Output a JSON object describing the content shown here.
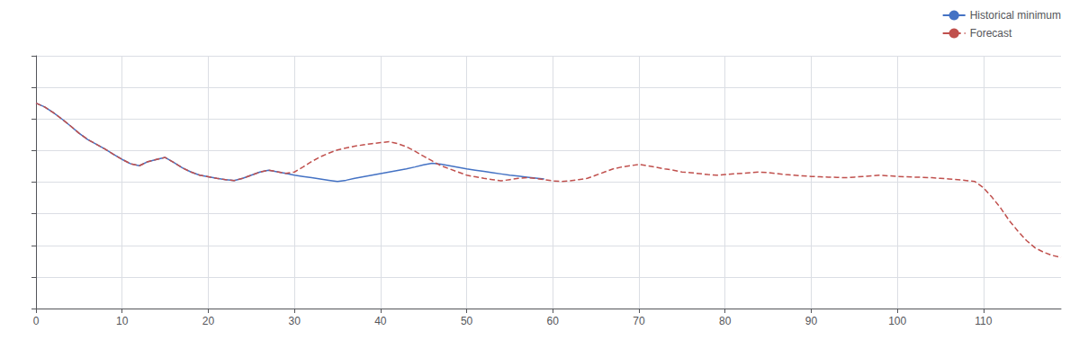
{
  "chart_data": {
    "type": "line",
    "xlim": [
      0,
      119
    ],
    "xticks": [
      0,
      10,
      20,
      30,
      40,
      50,
      60,
      70,
      80,
      90,
      100,
      110
    ],
    "ylim": [
      0,
      8
    ],
    "yticks": [
      0,
      1,
      2,
      3,
      4,
      5,
      6,
      7,
      8
    ],
    "grid": true,
    "legend": "upper right",
    "tick_labels": "x",
    "series": [
      {
        "name": "Historical minimum",
        "color": "#4472c4",
        "line_style": "solid",
        "x": [
          0,
          1,
          2,
          3,
          4,
          5,
          6,
          7,
          8,
          9,
          10,
          11,
          12,
          13,
          14,
          15,
          16,
          17,
          18,
          19,
          20,
          21,
          22,
          23,
          24,
          25,
          26,
          27,
          28,
          29,
          30,
          31,
          32,
          33,
          34,
          35,
          36,
          37,
          38,
          39,
          40,
          41,
          42,
          43,
          44,
          45,
          46,
          47,
          48,
          49,
          50,
          51,
          52,
          53,
          54,
          55,
          56,
          57,
          58,
          59
        ],
        "values": [
          6.5,
          6.38,
          6.2,
          6.0,
          5.78,
          5.55,
          5.35,
          5.2,
          5.05,
          4.88,
          4.72,
          4.58,
          4.52,
          4.65,
          4.72,
          4.78,
          4.62,
          4.45,
          4.32,
          4.22,
          4.17,
          4.12,
          4.08,
          4.05,
          4.12,
          4.22,
          4.32,
          4.38,
          4.33,
          4.28,
          4.22,
          4.18,
          4.14,
          4.1,
          4.06,
          4.02,
          4.06,
          4.12,
          4.17,
          4.22,
          4.27,
          4.32,
          4.37,
          4.42,
          4.48,
          4.55,
          4.6,
          4.57,
          4.52,
          4.47,
          4.42,
          4.38,
          4.34,
          4.3,
          4.26,
          4.22,
          4.19,
          4.16,
          4.13,
          4.1
        ]
      },
      {
        "name": "Forecast",
        "color": "#c0504d",
        "line_style": "dashed",
        "x": [
          0,
          1,
          2,
          3,
          4,
          5,
          6,
          7,
          8,
          9,
          10,
          11,
          12,
          13,
          14,
          15,
          16,
          17,
          18,
          19,
          20,
          21,
          22,
          23,
          24,
          25,
          26,
          27,
          28,
          29,
          30,
          31,
          32,
          33,
          34,
          35,
          36,
          37,
          38,
          39,
          40,
          41,
          42,
          43,
          44,
          45,
          46,
          47,
          48,
          49,
          50,
          51,
          52,
          53,
          54,
          55,
          56,
          57,
          58,
          59,
          60,
          61,
          62,
          63,
          64,
          65,
          66,
          67,
          68,
          69,
          70,
          71,
          72,
          73,
          74,
          75,
          76,
          77,
          78,
          79,
          80,
          81,
          82,
          83,
          84,
          85,
          86,
          87,
          88,
          89,
          90,
          91,
          92,
          93,
          94,
          95,
          96,
          97,
          98,
          99,
          100,
          101,
          102,
          103,
          104,
          105,
          106,
          107,
          108,
          109,
          110,
          111,
          112,
          113,
          114,
          115,
          116,
          117,
          118,
          119
        ],
        "values": [
          6.5,
          6.38,
          6.2,
          6.0,
          5.78,
          5.55,
          5.35,
          5.2,
          5.05,
          4.88,
          4.72,
          4.58,
          4.52,
          4.65,
          4.72,
          4.78,
          4.62,
          4.45,
          4.32,
          4.22,
          4.17,
          4.12,
          4.08,
          4.05,
          4.12,
          4.22,
          4.32,
          4.38,
          4.33,
          4.28,
          4.32,
          4.48,
          4.65,
          4.8,
          4.92,
          5.02,
          5.08,
          5.14,
          5.18,
          5.22,
          5.25,
          5.28,
          5.22,
          5.12,
          4.98,
          4.82,
          4.67,
          4.52,
          4.42,
          4.32,
          4.22,
          4.17,
          4.12,
          4.08,
          4.04,
          4.08,
          4.12,
          4.14,
          4.12,
          4.08,
          4.04,
          4.02,
          4.04,
          4.08,
          4.12,
          4.22,
          4.32,
          4.42,
          4.48,
          4.52,
          4.56,
          4.52,
          4.47,
          4.42,
          4.38,
          4.32,
          4.3,
          4.27,
          4.24,
          4.22,
          4.24,
          4.26,
          4.28,
          4.3,
          4.32,
          4.3,
          4.27,
          4.24,
          4.22,
          4.2,
          4.18,
          4.17,
          4.16,
          4.15,
          4.14,
          4.16,
          4.18,
          4.2,
          4.22,
          4.2,
          4.18,
          4.17,
          4.16,
          4.15,
          4.14,
          4.12,
          4.1,
          4.08,
          4.05,
          4.02,
          3.82,
          3.52,
          3.18,
          2.78,
          2.45,
          2.15,
          1.92,
          1.78,
          1.68,
          1.62
        ]
      }
    ]
  }
}
